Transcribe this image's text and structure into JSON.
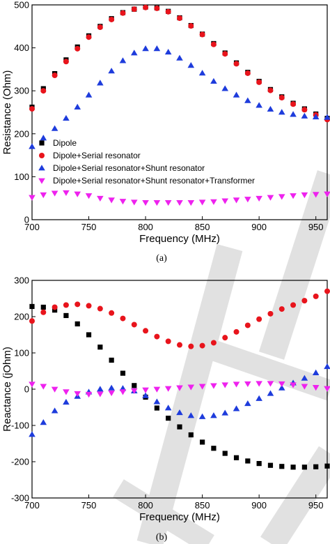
{
  "chart_data": [
    {
      "type": "scatter",
      "panel_label": "(a)",
      "title": "",
      "xlabel": "Frequency (MHz)",
      "ylabel": "Resistance (Ohm)",
      "xlim": [
        700,
        960
      ],
      "ylim": [
        0,
        500
      ],
      "xticks": [
        700,
        750,
        800,
        850,
        900,
        950
      ],
      "yticks": [
        0,
        100,
        200,
        300,
        400,
        500
      ],
      "legend_position": "lower-left",
      "x": [
        700,
        710,
        720,
        730,
        740,
        750,
        760,
        770,
        780,
        790,
        800,
        810,
        820,
        830,
        840,
        850,
        860,
        870,
        880,
        890,
        900,
        910,
        920,
        930,
        940,
        950,
        960
      ],
      "series": [
        {
          "name": "Dipole",
          "marker": "square",
          "color": "#000000",
          "values": [
            262,
            305,
            340,
            372,
            402,
            428,
            450,
            468,
            482,
            490,
            495,
            493,
            485,
            470,
            452,
            432,
            410,
            388,
            365,
            343,
            322,
            303,
            286,
            271,
            258,
            246,
            236
          ]
        },
        {
          "name": "Dipole+Serial resonator",
          "marker": "circle",
          "color": "#e8141c",
          "values": [
            258,
            300,
            336,
            368,
            398,
            425,
            448,
            466,
            481,
            490,
            494,
            492,
            484,
            469,
            451,
            431,
            408,
            386,
            363,
            341,
            320,
            301,
            284,
            269,
            256,
            244,
            233
          ]
        },
        {
          "name": "Dipole+Serial resonator+Shunt resonator",
          "marker": "triangle-up",
          "color": "#1e3cdc",
          "values": [
            170,
            190,
            212,
            236,
            262,
            290,
            318,
            346,
            370,
            388,
            398,
            398,
            390,
            376,
            359,
            341,
            322,
            305,
            290,
            277,
            266,
            257,
            250,
            245,
            241,
            239,
            238
          ]
        },
        {
          "name": "Dipole+Serial resonator+Shunt resonator+Transformer",
          "marker": "triangle-down",
          "color": "#ee22ee",
          "values": [
            52,
            58,
            62,
            63,
            60,
            56,
            50,
            46,
            43,
            41,
            40,
            40,
            40,
            40,
            40,
            41,
            42,
            44,
            46,
            48,
            50,
            52,
            54,
            56,
            58,
            59,
            60
          ]
        }
      ]
    },
    {
      "type": "scatter",
      "panel_label": "(b)",
      "title": "",
      "xlabel": "Frequency (MHz)",
      "ylabel": "Reactance (jOhm)",
      "xlim": [
        700,
        960
      ],
      "ylim": [
        -300,
        300
      ],
      "xticks": [
        700,
        750,
        800,
        850,
        900,
        950
      ],
      "yticks": [
        -300,
        -200,
        -100,
        0,
        100,
        200,
        300
      ],
      "x": [
        700,
        710,
        720,
        730,
        740,
        750,
        760,
        770,
        780,
        790,
        800,
        810,
        820,
        830,
        840,
        850,
        860,
        870,
        880,
        890,
        900,
        910,
        920,
        930,
        940,
        950,
        960
      ],
      "series": [
        {
          "name": "Dipole",
          "marker": "square",
          "color": "#000000",
          "values": [
            228,
            226,
            218,
            203,
            180,
            150,
            116,
            80,
            44,
            10,
            -22,
            -52,
            -80,
            -104,
            -126,
            -146,
            -163,
            -177,
            -189,
            -198,
            -205,
            -210,
            -213,
            -215,
            -215,
            -214,
            -212
          ]
        },
        {
          "name": "Dipole+Serial resonator",
          "marker": "circle",
          "color": "#e8141c",
          "values": [
            188,
            212,
            226,
            232,
            234,
            230,
            222,
            210,
            195,
            178,
            161,
            145,
            132,
            122,
            118,
            120,
            128,
            142,
            158,
            176,
            193,
            208,
            221,
            232,
            244,
            256,
            270
          ]
        },
        {
          "name": "Dipole+Serial resonator+Shunt resonator",
          "marker": "triangle-up",
          "color": "#1e3cdc",
          "values": [
            -125,
            -92,
            -60,
            -36,
            -20,
            -8,
            0,
            3,
            2,
            -5,
            -18,
            -35,
            -52,
            -65,
            -73,
            -76,
            -73,
            -66,
            -54,
            -40,
            -26,
            -12,
            3,
            17,
            30,
            45,
            62
          ]
        },
        {
          "name": "Dipole+Serial resonator+Shunt resonator+Transformer",
          "marker": "triangle-down",
          "color": "#ee22ee",
          "values": [
            14,
            8,
            0,
            -7,
            -12,
            -14,
            -13,
            -10,
            -7,
            -4,
            -2,
            0,
            2,
            4,
            6,
            8,
            10,
            12,
            14,
            15,
            16,
            16,
            15,
            12,
            8,
            5,
            2
          ]
        }
      ]
    }
  ]
}
